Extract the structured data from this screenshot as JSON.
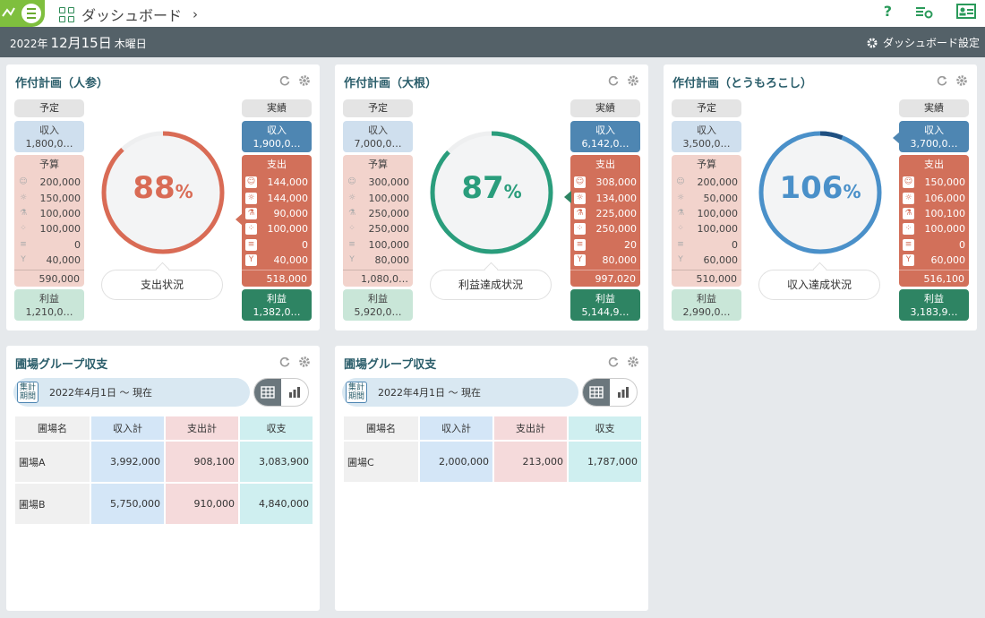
{
  "header": {
    "breadcrumb": "ダッシュボード",
    "help": "?"
  },
  "datebar": {
    "year": "2022年",
    "month_day": "12月15日",
    "weekday": "木曜日",
    "settings": "ダッシュボード設定"
  },
  "plan_cards": [
    {
      "title": "作付計画（人参）",
      "plan_label": "予定",
      "actual_label": "実績",
      "income_label": "収入",
      "income_plan": "1,800,0…",
      "income_actual": "1,900,0…",
      "budget_label": "予算",
      "expense_label": "支出",
      "budget_rows": [
        "200,000",
        "150,000",
        "100,000",
        "100,000",
        "0",
        "40,000"
      ],
      "budget_total": "590,000",
      "expense_rows": [
        "144,000",
        "144,000",
        "90,000",
        "100,000",
        "0",
        "40,000"
      ],
      "expense_total": "518,000",
      "profit_label": "利益",
      "profit_plan": "1,210,0…",
      "profit_actual": "1,382,0…",
      "percent": "88",
      "percent_sign": "%",
      "ratio": 0.88,
      "status": "支出状況",
      "color": "#d96b55"
    },
    {
      "title": "作付計画（大根）",
      "plan_label": "予定",
      "actual_label": "実績",
      "income_label": "収入",
      "income_plan": "7,000,0…",
      "income_actual": "6,142,0…",
      "budget_label": "予算",
      "expense_label": "支出",
      "budget_rows": [
        "300,000",
        "100,000",
        "250,000",
        "250,000",
        "100,000",
        "80,000"
      ],
      "budget_total": "1,080,0…",
      "expense_rows": [
        "308,000",
        "134,000",
        "225,000",
        "250,000",
        "20",
        "80,000"
      ],
      "expense_total": "997,020",
      "profit_label": "利益",
      "profit_plan": "5,920,0…",
      "profit_actual": "5,144,9…",
      "percent": "87",
      "percent_sign": "%",
      "ratio": 0.87,
      "status": "利益達成状況",
      "color": "#2a9d7c"
    },
    {
      "title": "作付計画（とうもろこし）",
      "plan_label": "予定",
      "actual_label": "実績",
      "income_label": "収入",
      "income_plan": "3,500,0…",
      "income_actual": "3,700,0…",
      "budget_label": "予算",
      "expense_label": "支出",
      "budget_rows": [
        "200,000",
        "50,000",
        "100,000",
        "100,000",
        "0",
        "60,000"
      ],
      "budget_total": "510,000",
      "expense_rows": [
        "150,000",
        "106,000",
        "100,100",
        "100,000",
        "0",
        "60,000"
      ],
      "expense_total": "516,100",
      "profit_label": "利益",
      "profit_plan": "2,990,0…",
      "profit_actual": "3,183,9…",
      "percent": "106",
      "percent_sign": "%",
      "ratio": 1.06,
      "status": "収入達成状況",
      "color": "#4a90c9"
    }
  ],
  "group_cards": [
    {
      "title": "圃場グループ収支",
      "period_label": "集計期間",
      "period": "2022年4月1日 ～ 現在",
      "headers": [
        "圃場名",
        "収入計",
        "支出計",
        "収支"
      ],
      "rows": [
        [
          "圃場A",
          "3,992,000",
          "908,100",
          "3,083,900"
        ],
        [
          "圃場B",
          "5,750,000",
          "910,000",
          "4,840,000"
        ]
      ]
    },
    {
      "title": "圃場グループ収支",
      "period_label": "集計期間",
      "period": "2022年4月1日 ～ 現在",
      "headers": [
        "圃場名",
        "収入計",
        "支出計",
        "収支"
      ],
      "rows": [
        [
          "圃場C",
          "2,000,000",
          "213,000",
          "1,787,000"
        ]
      ]
    }
  ],
  "icons": [
    "menu-icon",
    "grid-icon",
    "help-icon",
    "list-settings-icon",
    "id-card-icon",
    "gear-icon",
    "refresh-icon",
    "person-icon",
    "bulb-icon",
    "flask-icon",
    "seed-icon",
    "layers-icon",
    "sprout-icon",
    "table-icon",
    "bar-chart-icon"
  ]
}
